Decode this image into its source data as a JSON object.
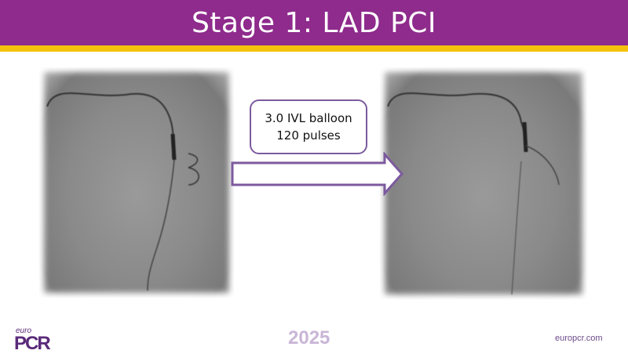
{
  "header": {
    "title": "Stage 1: LAD PCI"
  },
  "callout": {
    "line1": "3.0 IVL balloon",
    "line2": "120 pulses"
  },
  "images": [
    {
      "name": "angiogram-before"
    },
    {
      "name": "angiogram-after"
    }
  ],
  "footer": {
    "logo_euro": "euro",
    "logo_pcr": "PCR",
    "year": "2025",
    "website": "europcr.com"
  },
  "colors": {
    "header": "#8e2b8c",
    "accent_bar": "#f4c20d",
    "arrow_border": "#7c5a9e"
  }
}
